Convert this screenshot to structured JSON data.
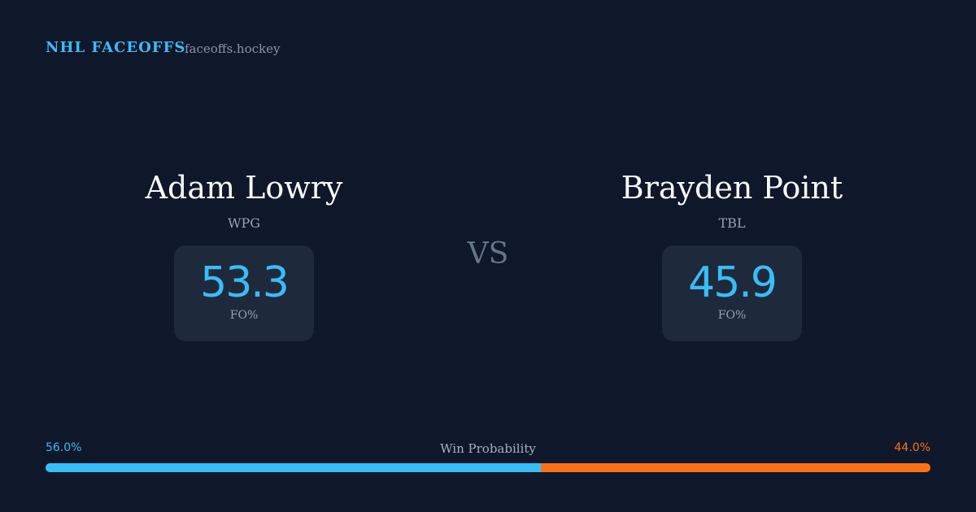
{
  "header": {
    "title": "NHL FACEOFFS",
    "site": "faceoffs.hockey"
  },
  "players": [
    {
      "name": "Adam Lowry",
      "team": "WPG",
      "fo_pct": 53.3,
      "fo_label": "FO%"
    },
    {
      "name": "Brayden Point",
      "team": "TBL",
      "fo_pct": 45.9,
      "fo_label": "FO%"
    }
  ],
  "vs": "VS",
  "win_probability": {
    "label": "Win Probability",
    "values": [
      56,
      44
    ],
    "value_labels": [
      "56.0%",
      "44.0%"
    ],
    "colors": [
      "#38bdf8",
      "#f97316"
    ]
  }
}
